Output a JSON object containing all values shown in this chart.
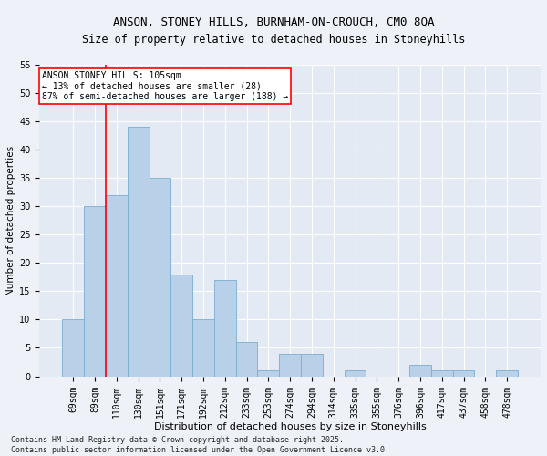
{
  "title1": "ANSON, STONEY HILLS, BURNHAM-ON-CROUCH, CM0 8QA",
  "title2": "Size of property relative to detached houses in Stoneyhills",
  "xlabel": "Distribution of detached houses by size in Stoneyhills",
  "ylabel": "Number of detached properties",
  "categories": [
    "69sqm",
    "89sqm",
    "110sqm",
    "130sqm",
    "151sqm",
    "171sqm",
    "192sqm",
    "212sqm",
    "233sqm",
    "253sqm",
    "274sqm",
    "294sqm",
    "314sqm",
    "335sqm",
    "355sqm",
    "376sqm",
    "396sqm",
    "417sqm",
    "437sqm",
    "458sqm",
    "478sqm"
  ],
  "values": [
    10,
    30,
    32,
    44,
    35,
    18,
    10,
    17,
    6,
    1,
    4,
    4,
    0,
    1,
    0,
    0,
    2,
    1,
    1,
    0,
    1
  ],
  "bar_color": "#b8d0e8",
  "bar_edge_color": "#7aadd0",
  "vline_x_index": 2,
  "vline_color": "red",
  "annotation_text": "ANSON STONEY HILLS: 105sqm\n← 13% of detached houses are smaller (28)\n87% of semi-detached houses are larger (188) →",
  "annotation_box_color": "white",
  "annotation_box_edge_color": "red",
  "ylim": [
    0,
    55
  ],
  "yticks": [
    0,
    5,
    10,
    15,
    20,
    25,
    30,
    35,
    40,
    45,
    50,
    55
  ],
  "footnote": "Contains HM Land Registry data © Crown copyright and database right 2025.\nContains public sector information licensed under the Open Government Licence v3.0.",
  "bg_color": "#eef2f8",
  "plot_bg_color": "#e4eaf4",
  "title1_fontsize": 9,
  "title2_fontsize": 8.5,
  "xlabel_fontsize": 8,
  "ylabel_fontsize": 7.5,
  "tick_fontsize": 7,
  "annotation_fontsize": 7,
  "footnote_fontsize": 6
}
